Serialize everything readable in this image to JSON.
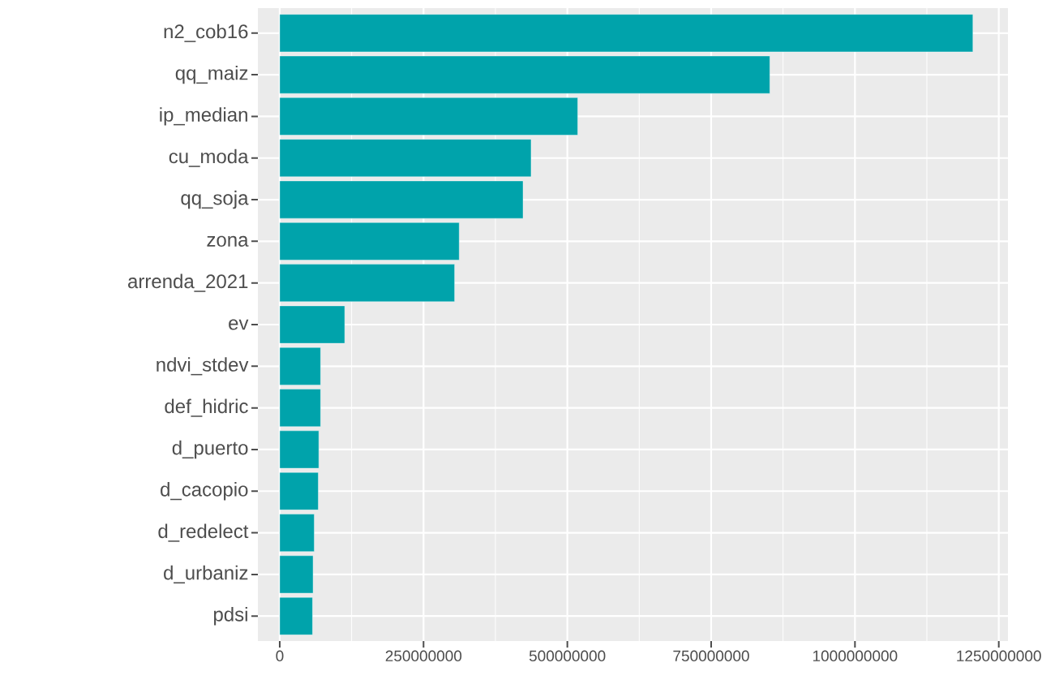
{
  "chart_data": {
    "type": "bar",
    "orientation": "horizontal",
    "color": "#00a3ab",
    "grid": true,
    "categories": [
      "n2_cob16",
      "qq_maiz",
      "ip_median",
      "cu_moda",
      "qq_soja",
      "zona",
      "arrenda_2021",
      "ev",
      "ndvi_stdev",
      "def_hidric",
      "d_puerto",
      "d_cacopio",
      "d_redelect",
      "d_urbaniz",
      "pdsi"
    ],
    "values": [
      1205000000,
      852000000,
      518000000,
      437000000,
      423000000,
      312000000,
      304000000,
      113000000,
      71000000,
      71000000,
      68000000,
      67000000,
      60000000,
      58000000,
      57000000
    ],
    "xlim": [
      -38000000,
      1266000000
    ],
    "xticks": [
      0,
      250000000,
      500000000,
      750000000,
      1000000000,
      1250000000
    ]
  }
}
